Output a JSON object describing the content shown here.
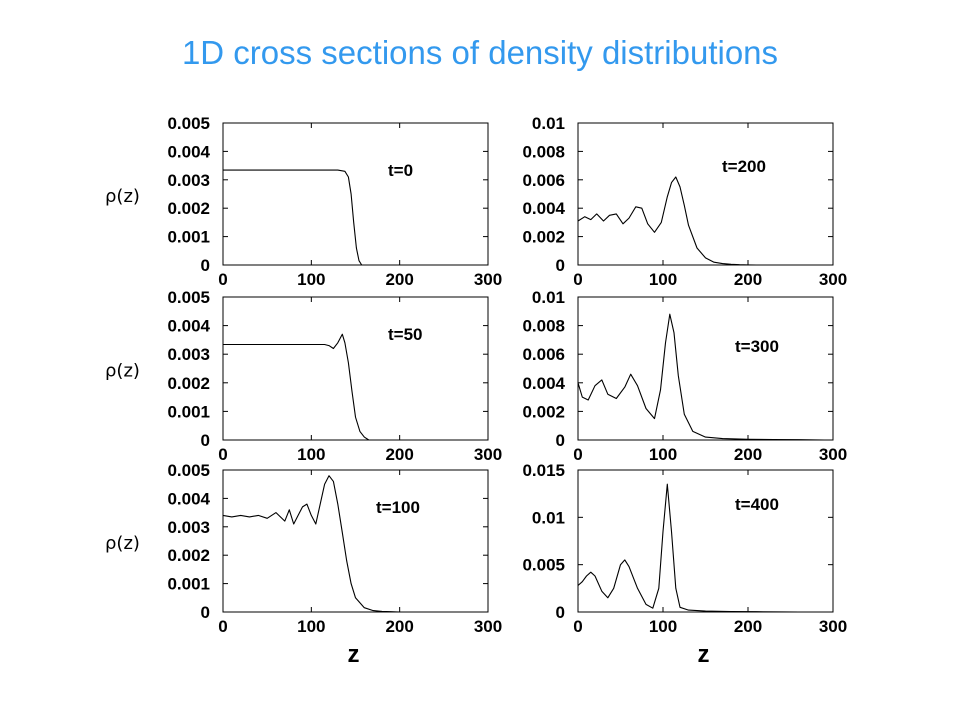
{
  "slide": {
    "title": "1D cross sections of density distributions"
  },
  "chart_data": [
    {
      "type": "line",
      "annotation": "t=0",
      "ylabel": "ρ(z)",
      "xlabel": "",
      "xlim": [
        0,
        300
      ],
      "ylim": [
        0,
        0.005
      ],
      "xticks": [
        "0",
        "100",
        "200",
        "300"
      ],
      "yticks": [
        "0",
        "0.001",
        "0.002",
        "0.003",
        "0.004",
        "0.005"
      ],
      "series": [
        {
          "x": [
            0,
            100,
            130,
            138,
            142,
            145,
            148,
            151,
            154,
            157,
            300
          ],
          "y": [
            0.00334,
            0.00334,
            0.00334,
            0.0033,
            0.0031,
            0.0025,
            0.0015,
            0.0006,
            0.00015,
            0,
            0
          ]
        }
      ]
    },
    {
      "type": "line",
      "annotation": "t=200",
      "ylabel": "",
      "xlabel": "",
      "xlim": [
        0,
        300
      ],
      "ylim": [
        0,
        0.01
      ],
      "xticks": [
        "0",
        "100",
        "200",
        "300"
      ],
      "yticks": [
        "0",
        "0.002",
        "0.004",
        "0.006",
        "0.008",
        "0.01"
      ],
      "series": [
        {
          "x": [
            0,
            8,
            15,
            22,
            30,
            37,
            45,
            53,
            60,
            68,
            75,
            82,
            90,
            98,
            105,
            110,
            115,
            120,
            125,
            130,
            140,
            150,
            160,
            170,
            180,
            190,
            200,
            210
          ],
          "y": [
            0.0031,
            0.0034,
            0.0032,
            0.0036,
            0.0031,
            0.0035,
            0.0036,
            0.0029,
            0.0033,
            0.0041,
            0.004,
            0.0029,
            0.0023,
            0.003,
            0.0048,
            0.0058,
            0.0062,
            0.0055,
            0.0042,
            0.0028,
            0.0012,
            0.0005,
            0.0002,
            0.0001,
            5e-05,
            2e-05,
            1e-05,
            0
          ]
        }
      ]
    },
    {
      "type": "line",
      "annotation": "t=50",
      "ylabel": "ρ(z)",
      "xlabel": "",
      "xlim": [
        0,
        300
      ],
      "ylim": [
        0,
        0.005
      ],
      "xticks": [
        "0",
        "100",
        "200",
        "300"
      ],
      "yticks": [
        "0",
        "0.001",
        "0.002",
        "0.003",
        "0.004",
        "0.005"
      ],
      "series": [
        {
          "x": [
            0,
            100,
            115,
            120,
            125,
            130,
            135,
            138,
            142,
            146,
            150,
            155,
            160,
            165,
            300
          ],
          "y": [
            0.00334,
            0.00334,
            0.00334,
            0.0033,
            0.0032,
            0.0034,
            0.0037,
            0.0034,
            0.0027,
            0.0017,
            0.0008,
            0.0003,
            0.0001,
            0,
            0
          ]
        }
      ]
    },
    {
      "type": "line",
      "annotation": "t=300",
      "ylabel": "",
      "xlabel": "",
      "xlim": [
        0,
        300
      ],
      "ylim": [
        0,
        0.01
      ],
      "xticks": [
        "0",
        "100",
        "200",
        "300"
      ],
      "yticks": [
        "0",
        "0.002",
        "0.004",
        "0.006",
        "0.008",
        "0.01"
      ],
      "series": [
        {
          "x": [
            0,
            5,
            12,
            20,
            28,
            35,
            45,
            55,
            62,
            70,
            80,
            90,
            97,
            103,
            108,
            113,
            118,
            125,
            135,
            150,
            170,
            200,
            230,
            260,
            290
          ],
          "y": [
            0.004,
            0.003,
            0.0028,
            0.0038,
            0.0042,
            0.0032,
            0.0029,
            0.0037,
            0.0046,
            0.0038,
            0.0022,
            0.0015,
            0.0035,
            0.0068,
            0.0088,
            0.0075,
            0.0045,
            0.0018,
            0.0006,
            0.0002,
            0.0001,
            5e-05,
            3e-05,
            2e-05,
            0
          ]
        }
      ]
    },
    {
      "type": "line",
      "annotation": "t=100",
      "ylabel": "ρ(z)",
      "xlabel": "z",
      "xlim": [
        0,
        300
      ],
      "ylim": [
        0,
        0.005
      ],
      "xticks": [
        "0",
        "100",
        "200",
        "300"
      ],
      "yticks": [
        "0",
        "0.001",
        "0.002",
        "0.003",
        "0.004",
        "0.005"
      ],
      "series": [
        {
          "x": [
            0,
            10,
            20,
            30,
            40,
            50,
            60,
            70,
            75,
            80,
            85,
            90,
            95,
            100,
            105,
            110,
            115,
            120,
            125,
            130,
            135,
            140,
            145,
            150,
            160,
            170,
            180,
            190,
            200,
            210
          ],
          "y": [
            0.0034,
            0.00335,
            0.0034,
            0.00335,
            0.0034,
            0.0033,
            0.0035,
            0.0032,
            0.0036,
            0.0031,
            0.0034,
            0.0037,
            0.0038,
            0.0034,
            0.0031,
            0.0038,
            0.0045,
            0.0048,
            0.0046,
            0.0038,
            0.0028,
            0.0018,
            0.001,
            0.0005,
            0.00015,
            5e-05,
            2e-05,
            1e-05,
            0,
            0
          ]
        }
      ]
    },
    {
      "type": "line",
      "annotation": "t=400",
      "ylabel": "",
      "xlabel": "z",
      "xlim": [
        0,
        300
      ],
      "ylim": [
        0,
        0.015
      ],
      "xticks": [
        "0",
        "100",
        "200",
        "300"
      ],
      "yticks": [
        "0",
        "0.005",
        "0.01",
        "0.015"
      ],
      "series": [
        {
          "x": [
            0,
            5,
            10,
            15,
            20,
            28,
            35,
            42,
            50,
            55,
            60,
            70,
            80,
            88,
            95,
            100,
            105,
            110,
            115,
            120,
            130,
            150,
            180,
            210,
            240,
            260
          ],
          "y": [
            0.0028,
            0.0032,
            0.0038,
            0.0042,
            0.0038,
            0.0022,
            0.0015,
            0.0025,
            0.005,
            0.0055,
            0.0048,
            0.0025,
            0.0008,
            0.0004,
            0.0025,
            0.0085,
            0.0135,
            0.0085,
            0.0025,
            0.0005,
            0.0002,
            0.0001,
            5e-05,
            3e-05,
            1e-05,
            0
          ]
        }
      ]
    }
  ]
}
